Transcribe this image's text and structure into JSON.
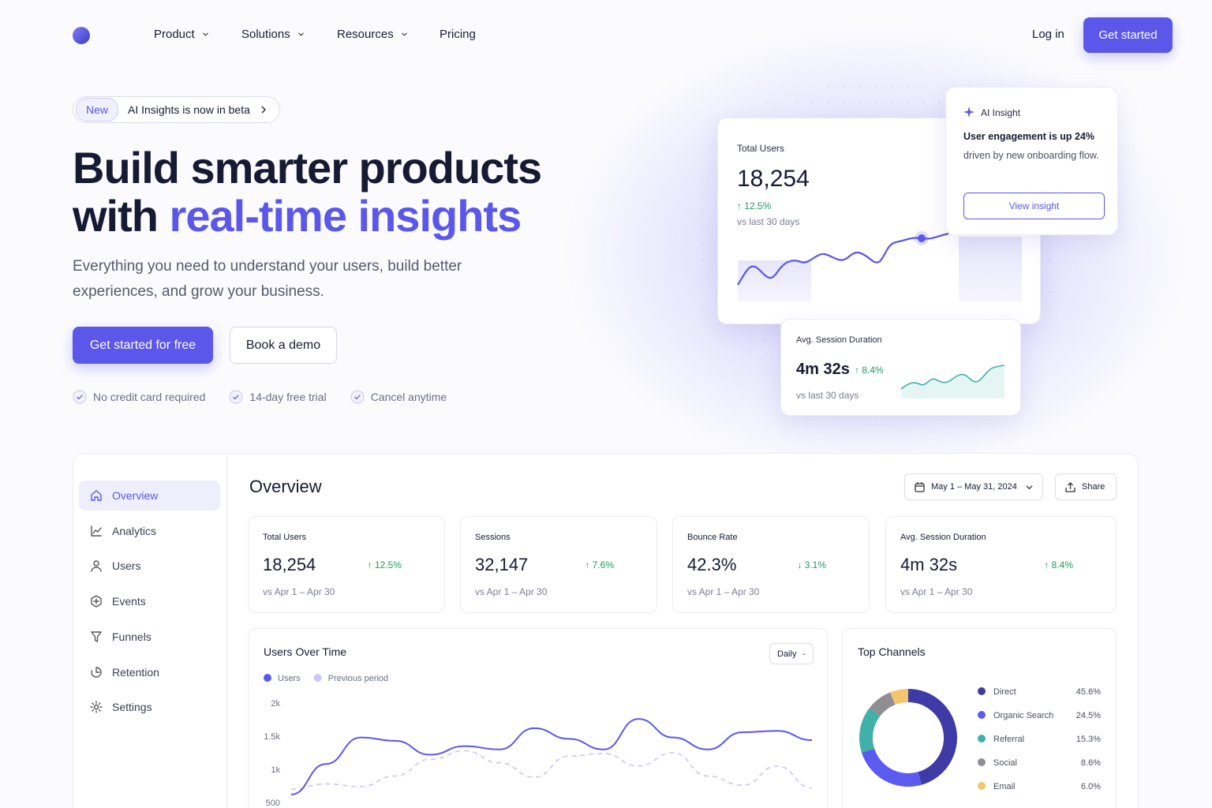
{
  "nav": {
    "links": [
      "Product",
      "Solutions",
      "Resources",
      "Pricing"
    ],
    "login": "Log in",
    "cta": "Get started"
  },
  "hero": {
    "badge": "New",
    "announcement": "AI Insights is now in beta",
    "title_line1": "Build smarter products",
    "title_line2_prefix": "with",
    "title_highlight": "real-time insights",
    "subtitle": "Everything you need to understand your users, build better experiences, and grow your business.",
    "primary_cta": "Get started for free",
    "secondary_cta": "Book a demo",
    "checks": [
      "No credit card required",
      "14-day free trial",
      "Cancel anytime"
    ]
  },
  "hero_cards": {
    "total_users": {
      "label": "Total Users",
      "value": "18,254",
      "change": "↑ 12.5%",
      "note": "vs last 30 days"
    },
    "ai_insight": {
      "label": "AI Insight",
      "headline": "User engagement is up 24%",
      "body": "driven by new onboarding flow.",
      "button": "View insight"
    },
    "session": {
      "label": "Avg. Session Duration",
      "value": "4m 32s",
      "change": "↑ 8.4%",
      "note": "vs last 30 days"
    }
  },
  "dashboard": {
    "sidebar": [
      "Overview",
      "Analytics",
      "Users",
      "Events",
      "Funnels",
      "Retention",
      "Settings"
    ],
    "title": "Overview",
    "date_range": "May 1 – May 31, 2024",
    "share": "Share",
    "kpis": [
      {
        "label": "Total Users",
        "value": "18,254",
        "change": "↑ 12.5%",
        "note": "vs Apr 1 – Apr 30"
      },
      {
        "label": "Sessions",
        "value": "32,147",
        "change": "↑ 7.6%",
        "note": "vs Apr 1 – Apr 30"
      },
      {
        "label": "Bounce Rate",
        "value": "42.3%",
        "change": "↓ 3.1%",
        "note": "vs Apr 1 – Apr 30"
      },
      {
        "label": "Avg. Session Duration",
        "value": "4m 32s",
        "change": "↑ 8.4%",
        "note": "vs Apr 1 – Apr 30"
      }
    ],
    "granularity": "Daily"
  },
  "chart_data": [
    {
      "type": "line",
      "title": "Users Over Time",
      "ylim": [
        500,
        2000
      ],
      "yticks": [
        {
          "value": 2000,
          "label": "2k"
        },
        {
          "value": 1500,
          "label": "1.5k"
        },
        {
          "value": 1000,
          "label": "1k"
        },
        500
      ],
      "grid": false,
      "series": [
        {
          "name": "Users",
          "color": "#5b57ea",
          "values": [
            620,
            1080,
            1480,
            1430,
            1220,
            1350,
            1300,
            1620,
            1460,
            1300,
            1760,
            1480,
            1300,
            1560,
            1580,
            1440
          ]
        },
        {
          "name": "Previous period",
          "color": "#c9c5f4",
          "values": [
            700,
            780,
            740,
            900,
            1150,
            1280,
            1100,
            880,
            1200,
            1240,
            1050,
            1250,
            900,
            760,
            1050,
            720
          ]
        }
      ]
    },
    {
      "type": "donut",
      "title": "Top Channels",
      "categories": [
        "Direct",
        "Organic Search",
        "Referral",
        "Social",
        "Email"
      ],
      "values": [
        45.6,
        24.5,
        15.3,
        8.6,
        6.0
      ],
      "value_labels": [
        "45.6%",
        "24.5%",
        "15.3%",
        "8.6%",
        "6.0%"
      ],
      "colors": [
        "#3f3ba6",
        "#5b5bf0",
        "#40b1a9",
        "#8e8e93",
        "#f5c46f"
      ]
    }
  ]
}
